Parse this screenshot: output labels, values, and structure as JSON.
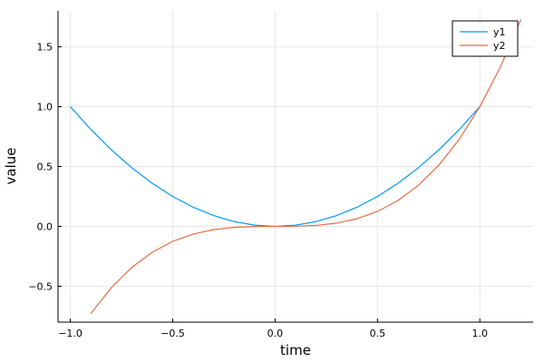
{
  "chart_data": {
    "type": "line",
    "xlabel": "time",
    "ylabel": "value",
    "xlim": [
      -1.06,
      1.26
    ],
    "ylim": [
      -0.8,
      1.8
    ],
    "xticks": [
      -1.0,
      -0.5,
      0.0,
      0.5,
      1.0
    ],
    "xtick_labels": [
      "−1.0",
      "−0.5",
      "0.0",
      "0.5",
      "1.0"
    ],
    "yticks": [
      -0.5,
      0.0,
      0.5,
      1.0,
      1.5
    ],
    "ytick_labels": [
      "−0.5",
      "0.0",
      "0.5",
      "1.0",
      "1.5"
    ],
    "grid": true,
    "legend_position": "top-right",
    "series": [
      {
        "name": "y1",
        "color": "#009af9",
        "x": [
          -1.0,
          -0.9,
          -0.8,
          -0.7,
          -0.6,
          -0.5,
          -0.4,
          -0.3,
          -0.2,
          -0.1,
          0.0,
          0.1,
          0.2,
          0.3,
          0.4,
          0.5,
          0.6,
          0.7,
          0.8,
          0.9,
          1.0
        ],
        "y": [
          1.0,
          0.81,
          0.64,
          0.49,
          0.36,
          0.25,
          0.16,
          0.09,
          0.04,
          0.01,
          0.0,
          0.01,
          0.04,
          0.09,
          0.16,
          0.25,
          0.36,
          0.49,
          0.64,
          0.81,
          1.0
        ]
      },
      {
        "name": "y2",
        "color": "#e26f46",
        "x": [
          -0.9,
          -0.8,
          -0.7,
          -0.6,
          -0.5,
          -0.4,
          -0.3,
          -0.2,
          -0.1,
          0.0,
          0.1,
          0.2,
          0.3,
          0.4,
          0.5,
          0.6,
          0.7,
          0.8,
          0.9,
          1.0,
          1.1,
          1.2
        ],
        "y": [
          -0.729,
          -0.512,
          -0.343,
          -0.216,
          -0.125,
          -0.064,
          -0.027,
          -0.008,
          -0.001,
          0.0,
          0.001,
          0.008,
          0.027,
          0.064,
          0.125,
          0.216,
          0.343,
          0.512,
          0.729,
          1.0,
          1.331,
          1.728
        ]
      }
    ]
  }
}
